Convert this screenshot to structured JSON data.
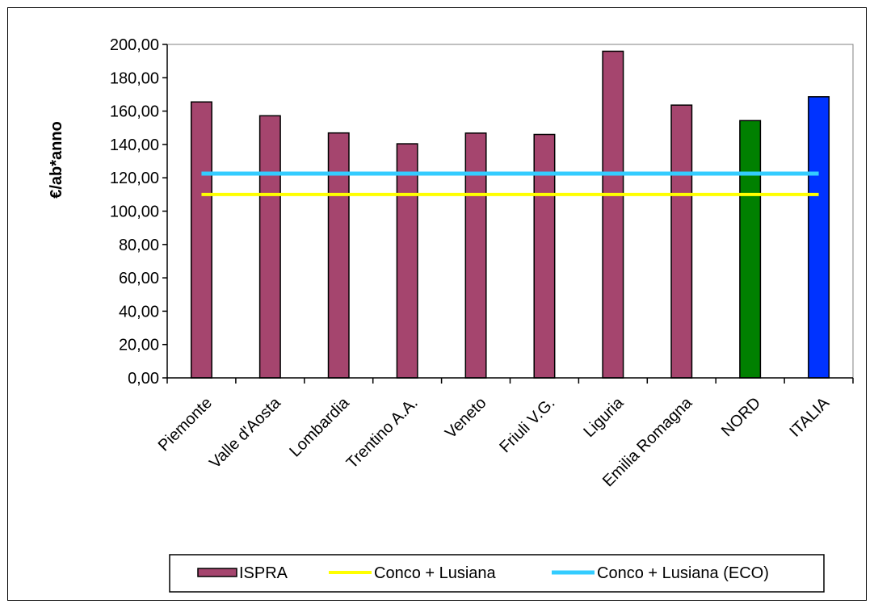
{
  "chart_data": {
    "type": "bar",
    "ylabel": "€/ab*anno",
    "xlabel": "",
    "ylim": [
      0,
      200
    ],
    "y_ticks": [
      "0,00",
      "20,00",
      "40,00",
      "60,00",
      "80,00",
      "100,00",
      "120,00",
      "140,00",
      "160,00",
      "180,00",
      "200,00"
    ],
    "y_tick_values": [
      0,
      20,
      40,
      60,
      80,
      100,
      120,
      140,
      160,
      180,
      200
    ],
    "categories": [
      "Piemonte",
      "Valle d'Aosta",
      "Lombardia",
      "Trentino A.A.",
      "Veneto",
      "Friuli V.G.",
      "Liguria",
      "Emilia Romagna",
      "NORD",
      "ITALIA"
    ],
    "series": [
      {
        "name": "ISPRA",
        "type": "bar",
        "values": [
          165.5,
          157.2,
          146.9,
          140.4,
          146.8,
          146.0,
          195.9,
          163.6,
          154.3,
          168.6
        ],
        "colors": [
          "#A5456E",
          "#A5456E",
          "#A5456E",
          "#A5456E",
          "#A5456E",
          "#A5456E",
          "#A5456E",
          "#A5456E",
          "#008000",
          "#0033FF"
        ]
      },
      {
        "name": "Conco + Lusiana",
        "type": "line",
        "value": 110.0,
        "color": "#FFFF00"
      },
      {
        "name": "Conco + Lusiana (ECO)",
        "type": "line",
        "value": 122.5,
        "color": "#33CCFF"
      }
    ],
    "grid": false,
    "legend_position": "bottom"
  }
}
